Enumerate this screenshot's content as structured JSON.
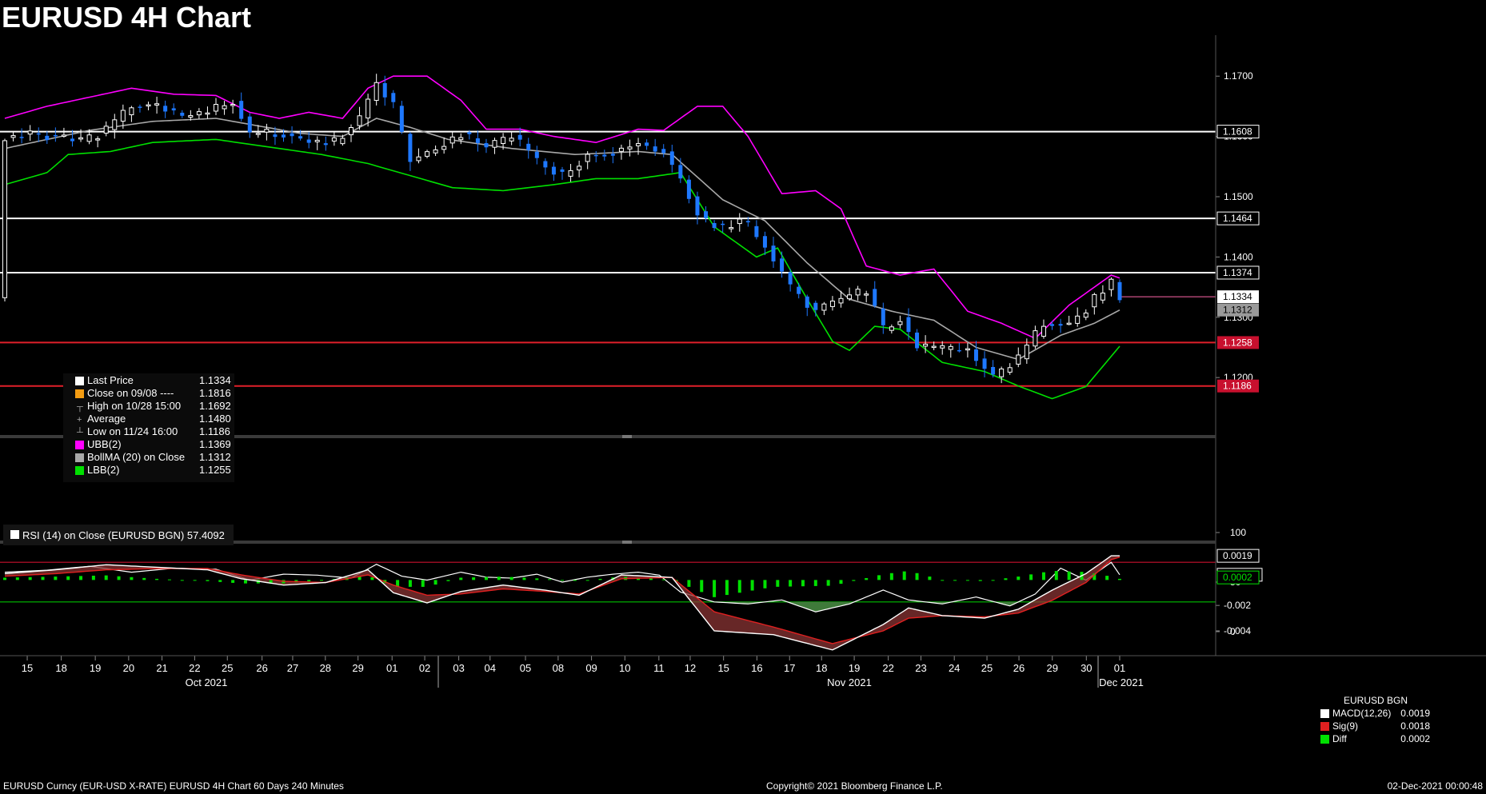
{
  "title": "EURUSD 4H Chart",
  "footer": {
    "left": "EURUSD Curncy (EUR-USD X-RATE) EURUSD 4H Chart 60 Days 240 Minutes",
    "center": "Copyright© 2021 Bloomberg Finance L.P.",
    "right": "02-Dec-2021 00:00:48"
  },
  "colors": {
    "upper_band": "#ff00ff",
    "lower_band": "#00e000",
    "mid_band": "#a8a8a8",
    "candle_up": "#ffffff",
    "candle_down": "#1e78ff",
    "support_line": "#e0202a",
    "resistance_line": "#ffffff",
    "macd": "#ffffff",
    "signal": "#e02020",
    "diff": "#00e000"
  },
  "legend": {
    "items": [
      {
        "label": "Last Price",
        "value": "1.1334",
        "color": "#ffffff"
      },
      {
        "label": "Close on 09/08 ----",
        "value": "1.1816",
        "color": "#f39c12"
      },
      {
        "label": "High on 10/28 15:00",
        "value": "1.1692",
        "color": null,
        "icon": "high-icon"
      },
      {
        "label": "Average",
        "value": "1.1480",
        "color": null,
        "icon": "average-icon"
      },
      {
        "label": "Low on 11/24 16:00",
        "value": "1.1186",
        "color": null,
        "icon": "low-icon"
      },
      {
        "label": "UBB(2)",
        "value": "1.1369",
        "color": "#ff00ff"
      },
      {
        "label": "BollMA (20)  on Close",
        "value": "1.1312",
        "color": "#a8a8a8"
      },
      {
        "label": "LBB(2)",
        "value": "1.1255",
        "color": "#00e000"
      }
    ]
  },
  "rsi_label": "RSI (14)  on Close (EURUSD BGN) 57.4092",
  "macd_legend": {
    "title": "EURUSD BGN",
    "items": [
      {
        "label": "MACD(12,26)",
        "value": "0.0019",
        "color": "#ffffff"
      },
      {
        "label": "Sig(9)",
        "value": "0.0018",
        "color": "#e02020"
      },
      {
        "label": "Diff",
        "value": "0.0002",
        "color": "#00e000"
      }
    ]
  },
  "chart_data": [
    {
      "type": "candlestick",
      "name": "price",
      "ylim": [
        1.111,
        1.176
      ],
      "y_ticks": [
        "1.1700",
        "1.1600",
        "1.1500",
        "1.1400",
        "1.1300",
        "1.1200"
      ],
      "x_ticks": [
        "15",
        "18",
        "19",
        "20",
        "21",
        "22",
        "25",
        "26",
        "27",
        "28",
        "29",
        "01",
        "02",
        "03",
        "04",
        "05",
        "08",
        "09",
        "10",
        "11",
        "12",
        "15",
        "16",
        "17",
        "18",
        "19",
        "22",
        "23",
        "24",
        "25",
        "26",
        "29",
        "30",
        "01"
      ],
      "month_labels": [
        "Oct 2021",
        "Nov 2021",
        "Dec 2021"
      ],
      "horizontal_lines": [
        {
          "value": 1.1608,
          "label": "1.1608",
          "color": "#ffffff"
        },
        {
          "value": 1.1464,
          "label": "1.1464",
          "color": "#ffffff"
        },
        {
          "value": 1.1374,
          "label": "1.1374",
          "color": "#ffffff"
        },
        {
          "value": 1.1258,
          "label": "1.1258",
          "color": "#e0202a"
        },
        {
          "value": 1.1186,
          "label": "1.1186",
          "color": "#e0202a"
        }
      ],
      "tags": [
        {
          "value": 1.1334,
          "label": "1.1334",
          "style": "white"
        },
        {
          "value": 1.1312,
          "label": "1.1312",
          "style": "gray"
        }
      ],
      "close_anchors": [
        [
          0,
          1.1598
        ],
        [
          6,
          1.1605
        ],
        [
          12,
          1.16
        ],
        [
          18,
          1.159
        ],
        [
          24,
          1.161
        ],
        [
          30,
          1.165
        ],
        [
          36,
          1.1652
        ],
        [
          42,
          1.1632
        ],
        [
          48,
          1.164
        ],
        [
          54,
          1.166
        ],
        [
          58,
          1.1605
        ],
        [
          66,
          1.1605
        ],
        [
          72,
          1.159
        ],
        [
          78,
          1.159
        ],
        [
          84,
          1.163
        ],
        [
          88,
          1.169
        ],
        [
          92,
          1.165
        ],
        [
          96,
          1.156
        ],
        [
          102,
          1.158
        ],
        [
          108,
          1.1605
        ],
        [
          114,
          1.158
        ],
        [
          120,
          1.16
        ],
        [
          126,
          1.156
        ],
        [
          132,
          1.1535
        ],
        [
          138,
          1.157
        ],
        [
          144,
          1.1575
        ],
        [
          150,
          1.159
        ],
        [
          156,
          1.1575
        ],
        [
          160,
          1.153
        ],
        [
          165,
          1.146
        ],
        [
          170,
          1.145
        ],
        [
          175,
          1.146
        ],
        [
          180,
          1.142
        ],
        [
          186,
          1.135
        ],
        [
          192,
          1.131
        ],
        [
          198,
          1.133
        ],
        [
          204,
          1.1345
        ],
        [
          208,
          1.128
        ],
        [
          212,
          1.13
        ],
        [
          216,
          1.125
        ],
        [
          222,
          1.1245
        ],
        [
          228,
          1.1248
        ],
        [
          234,
          1.12
        ],
        [
          240,
          1.123
        ],
        [
          246,
          1.129
        ],
        [
          252,
          1.129
        ],
        [
          256,
          1.1315
        ],
        [
          262,
          1.136
        ],
        [
          264,
          1.1334
        ]
      ],
      "upper_band_anchors": [
        [
          0,
          1.163
        ],
        [
          10,
          1.165
        ],
        [
          20,
          1.1665
        ],
        [
          30,
          1.168
        ],
        [
          40,
          1.167
        ],
        [
          50,
          1.1668
        ],
        [
          58,
          1.164
        ],
        [
          65,
          1.163
        ],
        [
          72,
          1.164
        ],
        [
          80,
          1.163
        ],
        [
          86,
          1.168
        ],
        [
          92,
          1.17
        ],
        [
          100,
          1.17
        ],
        [
          108,
          1.166
        ],
        [
          114,
          1.1612
        ],
        [
          122,
          1.1612
        ],
        [
          130,
          1.16
        ],
        [
          140,
          1.159
        ],
        [
          150,
          1.1612
        ],
        [
          156,
          1.161
        ],
        [
          164,
          1.165
        ],
        [
          170,
          1.165
        ],
        [
          176,
          1.16
        ],
        [
          184,
          1.1505
        ],
        [
          192,
          1.151
        ],
        [
          198,
          1.148
        ],
        [
          204,
          1.1385
        ],
        [
          212,
          1.137
        ],
        [
          220,
          1.138
        ],
        [
          228,
          1.131
        ],
        [
          236,
          1.129
        ],
        [
          244,
          1.1265
        ],
        [
          252,
          1.132
        ],
        [
          262,
          1.137
        ],
        [
          264,
          1.1365
        ]
      ],
      "mid_band_anchors": [
        [
          0,
          1.158
        ],
        [
          20,
          1.161
        ],
        [
          35,
          1.1625
        ],
        [
          50,
          1.163
        ],
        [
          58,
          1.162
        ],
        [
          70,
          1.1605
        ],
        [
          80,
          1.16
        ],
        [
          88,
          1.163
        ],
        [
          96,
          1.1615
        ],
        [
          105,
          1.1595
        ],
        [
          120,
          1.158
        ],
        [
          135,
          1.157
        ],
        [
          150,
          1.1575
        ],
        [
          158,
          1.157
        ],
        [
          170,
          1.1495
        ],
        [
          180,
          1.146
        ],
        [
          190,
          1.139
        ],
        [
          200,
          1.133
        ],
        [
          210,
          1.131
        ],
        [
          220,
          1.1295
        ],
        [
          230,
          1.125
        ],
        [
          240,
          1.123
        ],
        [
          250,
          1.127
        ],
        [
          258,
          1.129
        ],
        [
          264,
          1.1312
        ]
      ],
      "lower_band_anchors": [
        [
          0,
          1.152
        ],
        [
          10,
          1.154
        ],
        [
          15,
          1.157
        ],
        [
          25,
          1.1575
        ],
        [
          35,
          1.159
        ],
        [
          50,
          1.1595
        ],
        [
          60,
          1.1585
        ],
        [
          75,
          1.157
        ],
        [
          86,
          1.1555
        ],
        [
          96,
          1.1535
        ],
        [
          106,
          1.1515
        ],
        [
          118,
          1.151
        ],
        [
          130,
          1.152
        ],
        [
          140,
          1.153
        ],
        [
          150,
          1.153
        ],
        [
          160,
          1.154
        ],
        [
          168,
          1.145
        ],
        [
          178,
          1.14
        ],
        [
          183,
          1.1415
        ],
        [
          190,
          1.133
        ],
        [
          196,
          1.126
        ],
        [
          200,
          1.1245
        ],
        [
          206,
          1.1285
        ],
        [
          212,
          1.128
        ],
        [
          222,
          1.1225
        ],
        [
          232,
          1.121
        ],
        [
          240,
          1.1186
        ],
        [
          248,
          1.1165
        ],
        [
          256,
          1.1185
        ],
        [
          264,
          1.1252
        ]
      ]
    },
    {
      "type": "line",
      "name": "RSI (14)",
      "ylim": [
        0,
        100
      ],
      "y_ticks": [
        "100",
        "50",
        "0"
      ],
      "levels": [
        70,
        30
      ],
      "last_value": "57.4092",
      "anchors": [
        [
          0,
          60
        ],
        [
          10,
          62
        ],
        [
          20,
          66
        ],
        [
          30,
          60
        ],
        [
          40,
          64
        ],
        [
          50,
          63
        ],
        [
          58,
          52
        ],
        [
          66,
          58
        ],
        [
          74,
          57
        ],
        [
          82,
          54
        ],
        [
          88,
          68
        ],
        [
          94,
          56
        ],
        [
          100,
          52
        ],
        [
          108,
          60
        ],
        [
          114,
          55
        ],
        [
          120,
          54
        ],
        [
          126,
          58
        ],
        [
          132,
          50
        ],
        [
          138,
          55
        ],
        [
          144,
          58
        ],
        [
          150,
          60
        ],
        [
          155,
          57
        ],
        [
          160,
          40
        ],
        [
          168,
          30
        ],
        [
          176,
          28
        ],
        [
          184,
          32
        ],
        [
          192,
          20
        ],
        [
          200,
          28
        ],
        [
          208,
          42
        ],
        [
          214,
          32
        ],
        [
          222,
          28
        ],
        [
          230,
          35
        ],
        [
          238,
          26
        ],
        [
          244,
          38
        ],
        [
          250,
          64
        ],
        [
          256,
          52
        ],
        [
          262,
          70
        ],
        [
          264,
          57.4
        ]
      ]
    },
    {
      "type": "macd",
      "name": "MACD(12,26)",
      "ylim": [
        -0.0057,
        0.0026
      ],
      "y_ticks": [
        "-0.002",
        "-0.004"
      ],
      "macd_last": "0.0019",
      "signal_last": "0.0018",
      "diff_last": "0.0002",
      "macd_anchors": [
        [
          0,
          0.0005
        ],
        [
          12,
          0.0008
        ],
        [
          24,
          0.0012
        ],
        [
          36,
          0.001
        ],
        [
          48,
          0.0008
        ],
        [
          56,
          0.0001
        ],
        [
          66,
          -0.0004
        ],
        [
          76,
          -0.0002
        ],
        [
          86,
          0.0008
        ],
        [
          92,
          -0.001
        ],
        [
          100,
          -0.0018
        ],
        [
          108,
          -0.0009
        ],
        [
          118,
          -0.0004
        ],
        [
          128,
          -0.0008
        ],
        [
          136,
          -0.0012
        ],
        [
          146,
          0.0004
        ],
        [
          158,
          0.0002
        ],
        [
          168,
          -0.004
        ],
        [
          182,
          -0.0043
        ],
        [
          196,
          -0.0055
        ],
        [
          208,
          -0.0035
        ],
        [
          214,
          -0.0022
        ],
        [
          222,
          -0.0028
        ],
        [
          232,
          -0.003
        ],
        [
          240,
          -0.0023
        ],
        [
          248,
          -0.0008
        ],
        [
          256,
          0.0005
        ],
        [
          262,
          0.0019
        ],
        [
          264,
          0.0019
        ]
      ],
      "signal_anchors": [
        [
          0,
          0.0003
        ],
        [
          12,
          0.0005
        ],
        [
          24,
          0.0008
        ],
        [
          36,
          0.0009
        ],
        [
          48,
          0.0009
        ],
        [
          56,
          0.0004
        ],
        [
          66,
          -0.0001
        ],
        [
          76,
          -0.0002
        ],
        [
          86,
          0.0004
        ],
        [
          92,
          -0.0004
        ],
        [
          100,
          -0.0012
        ],
        [
          108,
          -0.0011
        ],
        [
          118,
          -0.0007
        ],
        [
          128,
          -0.0009
        ],
        [
          136,
          -0.0011
        ],
        [
          146,
          0.0001
        ],
        [
          158,
          0.0002
        ],
        [
          168,
          -0.0025
        ],
        [
          182,
          -0.0037
        ],
        [
          196,
          -0.005
        ],
        [
          208,
          -0.004
        ],
        [
          214,
          -0.003
        ],
        [
          222,
          -0.0028
        ],
        [
          232,
          -0.0029
        ],
        [
          240,
          -0.0026
        ],
        [
          248,
          -0.0016
        ],
        [
          256,
          -0.0002
        ],
        [
          262,
          0.0016
        ],
        [
          264,
          0.0018
        ]
      ]
    }
  ]
}
